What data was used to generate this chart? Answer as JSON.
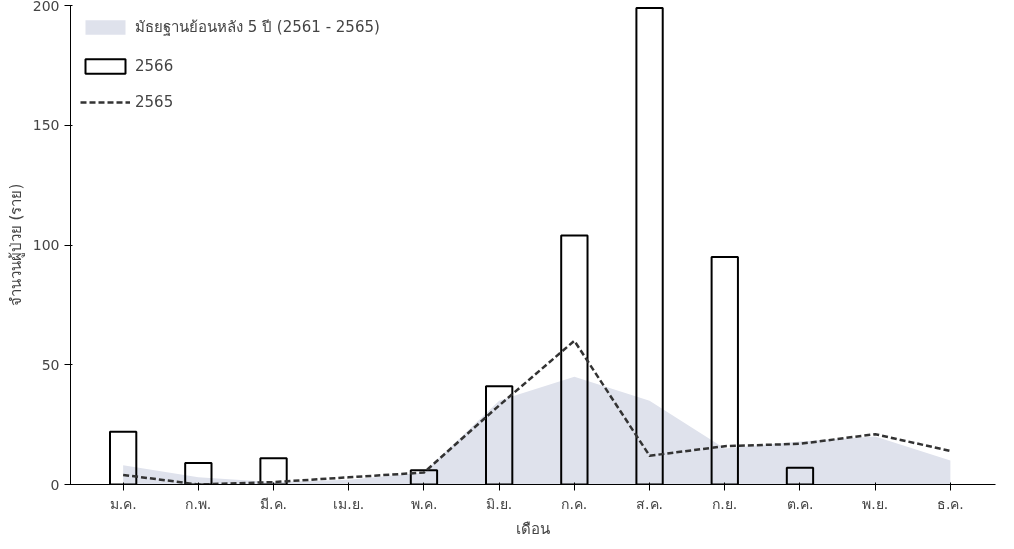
{
  "chart_data": {
    "type": "bar",
    "xlabel": "เดือน",
    "ylabel": "จำนวนผู้ป่วย (ราย)",
    "categories": [
      "ม.ค.",
      "ก.พ.",
      "มี.ค.",
      "เม.ย.",
      "พ.ค.",
      "มิ.ย.",
      "ก.ค.",
      "ส.ค.",
      "ก.ย.",
      "ต.ค.",
      "พ.ย.",
      "ธ.ค."
    ],
    "series": [
      {
        "name": "มัธยฐานย้อนหลัง 5 ปี (2561 - 2565)",
        "type": "area",
        "color": "#dfe2ec",
        "values": [
          8,
          3,
          1,
          2,
          5,
          35,
          45,
          35,
          15,
          18,
          20,
          10
        ]
      },
      {
        "name": "2566",
        "color": "#000000",
        "values": [
          22,
          9,
          11,
          null,
          6,
          41,
          104,
          199,
          95,
          7,
          null,
          null
        ]
      },
      {
        "name": "2565",
        "type": "line",
        "color": "#333333",
        "line_style": "dashed",
        "values": [
          4,
          0,
          1,
          3,
          5,
          33,
          60,
          12,
          16,
          17,
          21,
          14
        ]
      }
    ],
    "ylim": [
      0,
      200
    ],
    "yticks": [
      0,
      50,
      100,
      150,
      200
    ],
    "grid": false,
    "legend": "top left"
  }
}
